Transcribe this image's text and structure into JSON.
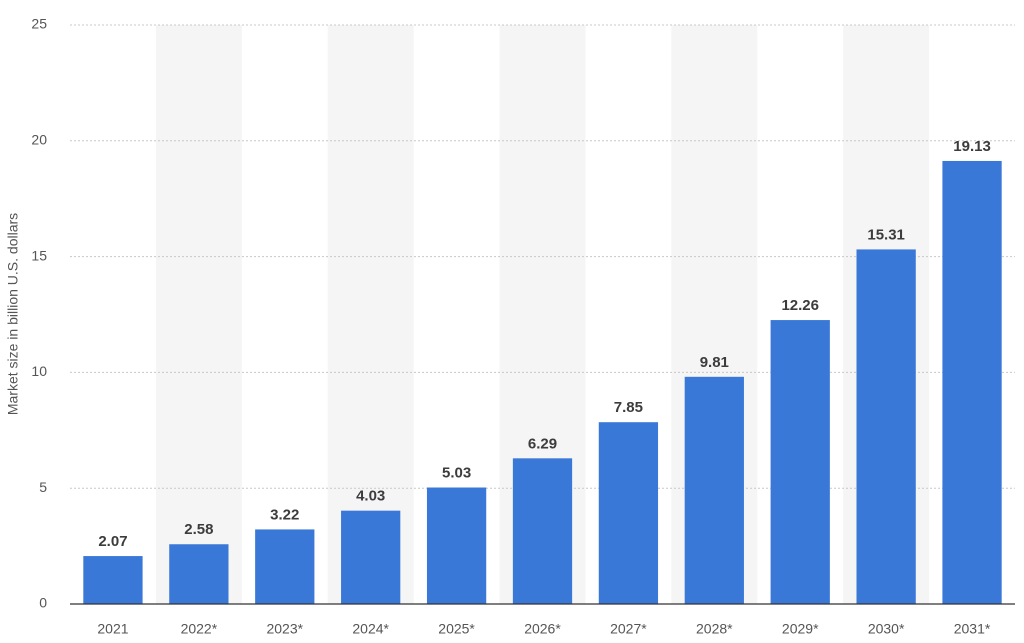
{
  "chart_data": {
    "type": "bar",
    "ylabel": "Market size in billion U.S. dollars",
    "categories": [
      "2021",
      "2022*",
      "2023*",
      "2024*",
      "2025*",
      "2026*",
      "2027*",
      "2028*",
      "2029*",
      "2030*",
      "2031*"
    ],
    "values": [
      2.07,
      2.58,
      3.22,
      4.03,
      5.03,
      6.29,
      7.85,
      9.81,
      12.26,
      15.31,
      19.13
    ],
    "color": "#3a78d8",
    "ylim": [
      0,
      25
    ],
    "yticks": [
      0,
      5,
      10,
      15,
      20,
      25
    ],
    "grid": true
  }
}
